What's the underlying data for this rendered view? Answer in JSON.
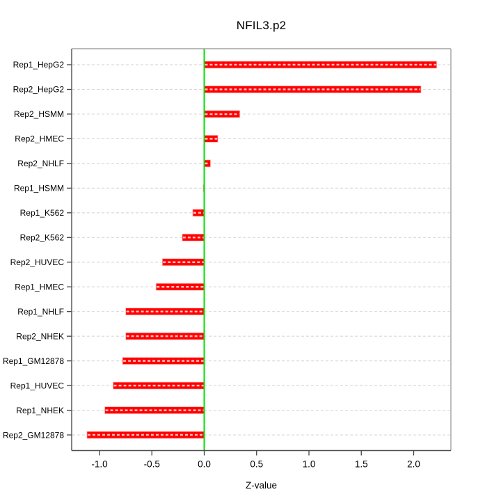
{
  "chart_data": {
    "type": "bar",
    "orientation": "horizontal",
    "title": "NFIL3.p2",
    "xlabel": "Z-value",
    "ylabel": "",
    "categories": [
      "Rep1_HepG2",
      "Rep2_HepG2",
      "Rep2_HSMM",
      "Rep2_HMEC",
      "Rep2_NHLF",
      "Rep1_HSMM",
      "Rep1_K562",
      "Rep2_K562",
      "Rep2_HUVEC",
      "Rep1_HMEC",
      "Rep1_NHLF",
      "Rep2_NHEK",
      "Rep1_GM12878",
      "Rep1_HUVEC",
      "Rep1_NHEK",
      "Rep2_GM12878"
    ],
    "values": [
      2.22,
      2.07,
      0.34,
      0.13,
      0.06,
      -0.01,
      -0.11,
      -0.21,
      -0.4,
      -0.46,
      -0.75,
      -0.75,
      -0.78,
      -0.87,
      -0.95,
      -1.12
    ],
    "xticks": [
      -1.0,
      -0.5,
      0.0,
      0.5,
      1.0,
      1.5,
      2.0
    ],
    "xtick_labels": [
      "-1.0",
      "-0.5",
      "0.0",
      "0.5",
      "1.0",
      "1.5",
      "2.0"
    ],
    "xlim": [
      -1.27,
      2.36
    ],
    "grid": true,
    "gridline_style": "dashed",
    "zero_reference_line": 0.0,
    "legend_position": "none",
    "colors": {
      "bar": "#ff0000",
      "bar_rim": "#ffb3b3",
      "bar_dash_overlay": "rgba(255,255,255,0.75)",
      "zero_line": "#00e000",
      "gridline": "#d9d9d9",
      "box_light": "#a3a3a3",
      "axis_dark": "#4d4d4d",
      "tick": "#404040",
      "text": "#000000"
    }
  }
}
